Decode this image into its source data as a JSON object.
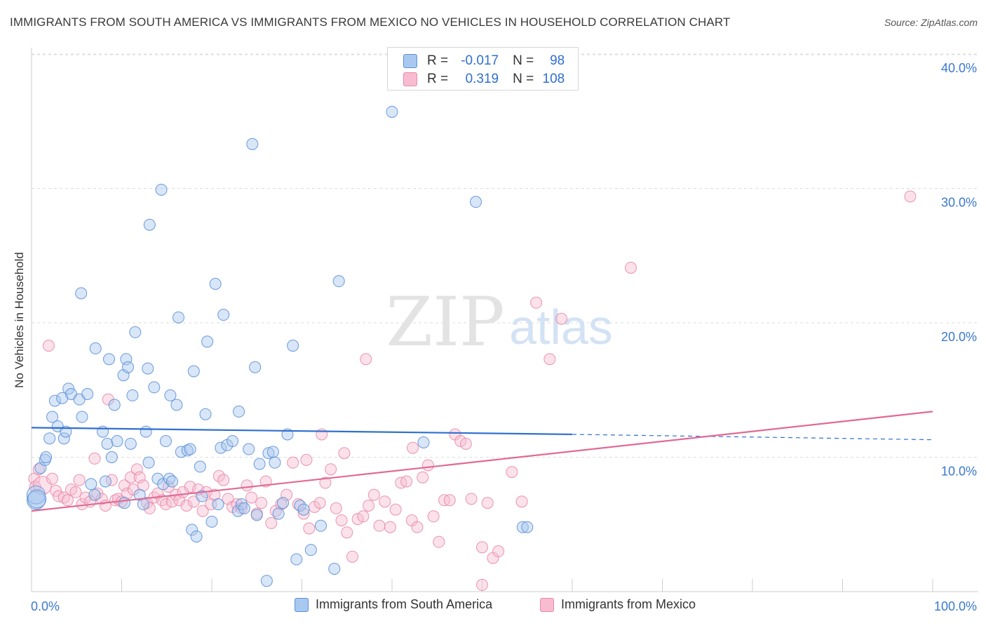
{
  "header": {
    "title": "IMMIGRANTS FROM SOUTH AMERICA VS IMMIGRANTS FROM MEXICO NO VEHICLES IN HOUSEHOLD CORRELATION CHART",
    "source": "Source: ZipAtlas.com"
  },
  "watermark": {
    "zip": "ZIP",
    "atlas": "atlas"
  },
  "legend_stats": {
    "row1": {
      "r_label": "R = ",
      "r_value": "-0.017",
      "n_label": "N = ",
      "n_value": "98"
    },
    "row2": {
      "r_label": "R = ",
      "r_value": "0.319",
      "n_label": "N = ",
      "n_value": "108"
    }
  },
  "colors": {
    "blue_fill": "#a9c8f0",
    "blue_stroke": "#5b8fd6",
    "blue_line": "#2f6fd0",
    "pink_fill": "#f7bcd0",
    "pink_stroke": "#e889a8",
    "pink_line": "#e06a94",
    "grid": "#dddddd",
    "tick_label": "#3b78cf"
  },
  "chart_data": {
    "type": "scatter",
    "title": "IMMIGRANTS FROM SOUTH AMERICA VS IMMIGRANTS FROM MEXICO NO VEHICLES IN HOUSEHOLD CORRELATION CHART",
    "xlabel": "",
    "ylabel": "No Vehicles in Household",
    "xlim": [
      0,
      100
    ],
    "ylim": [
      0,
      42
    ],
    "x_tick_labels": {
      "left": "0.0%",
      "right": "100.0%"
    },
    "y_ticks": [
      {
        "value": 10,
        "label": "10.0%"
      },
      {
        "value": 20,
        "label": "20.0%"
      },
      {
        "value": 30,
        "label": "30.0%"
      },
      {
        "value": 40,
        "label": "40.0%"
      }
    ],
    "series": [
      {
        "name": "Immigrants from South America",
        "color": "blue",
        "trend": {
          "x0": 0,
          "y0": 12.2,
          "x1": 60,
          "y1": 11.7,
          "dash_x1": 100,
          "dash_y1": 11.3
        },
        "points": [
          [
            0.5,
            6.8,
            1
          ],
          [
            0.5,
            7.2,
            1
          ],
          [
            0.6,
            6.9,
            1
          ],
          [
            1.0,
            9.2,
            0
          ],
          [
            1.5,
            9.8,
            0
          ],
          [
            1.6,
            10.0,
            0
          ],
          [
            2.0,
            11.4,
            0
          ],
          [
            2.3,
            13.0,
            0
          ],
          [
            2.6,
            14.2,
            0
          ],
          [
            2.9,
            12.3,
            0
          ],
          [
            3.4,
            14.4,
            0
          ],
          [
            3.6,
            11.4,
            0
          ],
          [
            3.8,
            11.9,
            0
          ],
          [
            4.1,
            15.1,
            0
          ],
          [
            4.4,
            14.7,
            0
          ],
          [
            5.3,
            14.3,
            0
          ],
          [
            5.6,
            13.0,
            0
          ],
          [
            6.2,
            14.7,
            0
          ],
          [
            6.6,
            8.0,
            0
          ],
          [
            7.0,
            7.2,
            0
          ],
          [
            5.5,
            22.2,
            0
          ],
          [
            7.1,
            18.1,
            0
          ],
          [
            7.9,
            11.9,
            0
          ],
          [
            8.2,
            8.2,
            0
          ],
          [
            8.4,
            11.0,
            0
          ],
          [
            8.6,
            17.3,
            0
          ],
          [
            8.9,
            10.0,
            0
          ],
          [
            9.2,
            13.9,
            0
          ],
          [
            9.5,
            11.2,
            0
          ],
          [
            10.2,
            16.1,
            0
          ],
          [
            10.3,
            6.6,
            0
          ],
          [
            10.5,
            17.3,
            0
          ],
          [
            10.7,
            16.7,
            0
          ],
          [
            11.0,
            11.0,
            0
          ],
          [
            11.2,
            14.6,
            0
          ],
          [
            11.5,
            19.3,
            0
          ],
          [
            12.0,
            7.2,
            0
          ],
          [
            12.4,
            6.5,
            0
          ],
          [
            12.7,
            11.9,
            0
          ],
          [
            12.9,
            16.6,
            0
          ],
          [
            13.0,
            9.6,
            0
          ],
          [
            13.1,
            27.3,
            0
          ],
          [
            13.6,
            15.2,
            0
          ],
          [
            14.0,
            8.4,
            0
          ],
          [
            14.4,
            29.9,
            0
          ],
          [
            14.6,
            8.0,
            0
          ],
          [
            14.9,
            11.2,
            0
          ],
          [
            15.3,
            8.4,
            0
          ],
          [
            15.4,
            14.6,
            0
          ],
          [
            15.6,
            8.2,
            0
          ],
          [
            16.1,
            13.9,
            0
          ],
          [
            16.3,
            20.4,
            0
          ],
          [
            16.6,
            10.4,
            0
          ],
          [
            17.3,
            10.5,
            0
          ],
          [
            17.6,
            10.6,
            0
          ],
          [
            17.8,
            4.6,
            0
          ],
          [
            18.0,
            16.4,
            0
          ],
          [
            18.3,
            4.1,
            0
          ],
          [
            18.7,
            9.3,
            0
          ],
          [
            18.9,
            7.1,
            0
          ],
          [
            19.3,
            13.2,
            0
          ],
          [
            19.5,
            18.6,
            0
          ],
          [
            20.0,
            5.2,
            0
          ],
          [
            20.4,
            22.9,
            0
          ],
          [
            20.7,
            6.5,
            0
          ],
          [
            21.0,
            10.7,
            0
          ],
          [
            21.3,
            20.6,
            0
          ],
          [
            21.7,
            10.9,
            0
          ],
          [
            22.3,
            11.2,
            0
          ],
          [
            22.9,
            6.0,
            0
          ],
          [
            23.0,
            13.4,
            0
          ],
          [
            23.3,
            6.5,
            0
          ],
          [
            23.6,
            6.2,
            0
          ],
          [
            24.1,
            10.6,
            0
          ],
          [
            24.5,
            33.3,
            0
          ],
          [
            24.8,
            16.7,
            0
          ],
          [
            25.3,
            9.5,
            0
          ],
          [
            26.1,
            0.8,
            0
          ],
          [
            26.3,
            10.3,
            0
          ],
          [
            26.8,
            10.4,
            0
          ],
          [
            27.0,
            9.6,
            0
          ],
          [
            27.4,
            5.8,
            0
          ],
          [
            27.9,
            6.6,
            0
          ],
          [
            28.4,
            11.7,
            0
          ],
          [
            29.0,
            18.3,
            0
          ],
          [
            29.4,
            2.4,
            0
          ],
          [
            29.8,
            6.4,
            0
          ],
          [
            31.0,
            3.1,
            0
          ],
          [
            32.1,
            4.9,
            0
          ],
          [
            33.6,
            1.7,
            0
          ],
          [
            34.1,
            23.1,
            0
          ],
          [
            40.0,
            35.7,
            0
          ],
          [
            43.5,
            11.1,
            0
          ],
          [
            49.3,
            29.0,
            0
          ],
          [
            54.5,
            4.8,
            0
          ],
          [
            55.0,
            4.8,
            0
          ],
          [
            30.2,
            6.1,
            0
          ],
          [
            25.0,
            5.7,
            0
          ]
        ]
      },
      {
        "name": "Immigrants from Mexico",
        "color": "pink",
        "trend": {
          "x0": 0,
          "y0": 6.0,
          "x1": 100,
          "y1": 13.4
        },
        "points": [
          [
            0.3,
            8.4,
            0
          ],
          [
            0.4,
            7.8,
            0
          ],
          [
            0.8,
            9.1,
            0
          ],
          [
            1.2,
            7.9,
            1
          ],
          [
            1.9,
            18.3,
            0
          ],
          [
            2.3,
            8.4,
            0
          ],
          [
            2.7,
            7.5,
            0
          ],
          [
            3.0,
            7.1,
            0
          ],
          [
            3.6,
            7.0,
            0
          ],
          [
            4.0,
            6.8,
            0
          ],
          [
            4.4,
            7.6,
            0
          ],
          [
            4.9,
            7.4,
            0
          ],
          [
            5.3,
            8.3,
            0
          ],
          [
            5.6,
            6.5,
            0
          ],
          [
            6.0,
            7.0,
            0
          ],
          [
            6.5,
            6.7,
            0
          ],
          [
            7.0,
            9.9,
            0
          ],
          [
            7.3,
            7.3,
            0
          ],
          [
            7.8,
            6.9,
            0
          ],
          [
            8.2,
            6.4,
            0
          ],
          [
            8.5,
            14.3,
            0
          ],
          [
            8.9,
            8.3,
            0
          ],
          [
            9.3,
            6.8,
            0
          ],
          [
            9.6,
            6.9,
            0
          ],
          [
            10.0,
            6.7,
            0
          ],
          [
            10.3,
            7.9,
            0
          ],
          [
            10.6,
            7.3,
            0
          ],
          [
            11.0,
            8.5,
            0
          ],
          [
            11.3,
            7.6,
            0
          ],
          [
            11.7,
            9.1,
            0
          ],
          [
            12.0,
            8.5,
            0
          ],
          [
            12.4,
            7.9,
            0
          ],
          [
            12.8,
            6.6,
            0
          ],
          [
            13.1,
            6.2,
            0
          ],
          [
            13.6,
            7.0,
            0
          ],
          [
            14.0,
            7.3,
            0
          ],
          [
            14.5,
            6.8,
            0
          ],
          [
            14.9,
            6.5,
            0
          ],
          [
            15.2,
            7.8,
            0
          ],
          [
            15.6,
            6.7,
            0
          ],
          [
            16.0,
            7.2,
            0
          ],
          [
            16.4,
            6.8,
            0
          ],
          [
            16.8,
            7.4,
            0
          ],
          [
            17.2,
            6.4,
            0
          ],
          [
            17.6,
            7.8,
            0
          ],
          [
            18.0,
            6.7,
            0
          ],
          [
            18.5,
            7.6,
            0
          ],
          [
            19.0,
            6.0,
            0
          ],
          [
            19.4,
            7.4,
            0
          ],
          [
            19.9,
            6.5,
            0
          ],
          [
            20.3,
            7.2,
            0
          ],
          [
            20.8,
            8.6,
            0
          ],
          [
            21.3,
            8.3,
            0
          ],
          [
            21.8,
            6.9,
            0
          ],
          [
            22.3,
            6.3,
            0
          ],
          [
            22.8,
            6.5,
            0
          ],
          [
            23.3,
            6.2,
            0
          ],
          [
            23.9,
            7.9,
            0
          ],
          [
            24.4,
            7.0,
            0
          ],
          [
            25.0,
            5.8,
            0
          ],
          [
            25.5,
            6.6,
            0
          ],
          [
            26.0,
            8.2,
            0
          ],
          [
            26.6,
            5.1,
            0
          ],
          [
            27.1,
            6.0,
            0
          ],
          [
            27.7,
            6.5,
            0
          ],
          [
            28.3,
            7.2,
            0
          ],
          [
            29.0,
            9.6,
            0
          ],
          [
            29.6,
            6.5,
            0
          ],
          [
            30.2,
            5.8,
            0
          ],
          [
            30.8,
            4.7,
            0
          ],
          [
            31.4,
            6.3,
            0
          ],
          [
            32.0,
            6.6,
            0
          ],
          [
            32.6,
            8.1,
            0
          ],
          [
            33.2,
            9.1,
            0
          ],
          [
            33.8,
            6.2,
            0
          ],
          [
            34.4,
            5.3,
            0
          ],
          [
            35.0,
            4.4,
            0
          ],
          [
            35.6,
            2.6,
            0
          ],
          [
            36.2,
            5.4,
            0
          ],
          [
            36.8,
            5.6,
            0
          ],
          [
            37.4,
            6.4,
            0
          ],
          [
            38.0,
            7.2,
            0
          ],
          [
            38.6,
            4.9,
            0
          ],
          [
            39.2,
            6.7,
            0
          ],
          [
            39.8,
            4.8,
            0
          ],
          [
            40.4,
            6.1,
            0
          ],
          [
            41.0,
            8.1,
            0
          ],
          [
            41.6,
            8.2,
            0
          ],
          [
            42.2,
            5.3,
            0
          ],
          [
            42.8,
            4.8,
            0
          ],
          [
            43.4,
            8.5,
            0
          ],
          [
            44.0,
            9.4,
            0
          ],
          [
            44.6,
            5.6,
            0
          ],
          [
            45.2,
            3.7,
            0
          ],
          [
            45.8,
            6.8,
            0
          ],
          [
            46.4,
            6.8,
            0
          ],
          [
            47.0,
            11.7,
            0
          ],
          [
            47.6,
            11.2,
            0
          ],
          [
            48.2,
            11.0,
            0
          ],
          [
            48.8,
            6.9,
            0
          ],
          [
            50.0,
            3.3,
            0
          ],
          [
            50.6,
            6.6,
            0
          ],
          [
            51.2,
            2.5,
            0
          ],
          [
            51.8,
            3.0,
            0
          ],
          [
            53.3,
            8.9,
            0
          ],
          [
            54.4,
            6.7,
            0
          ],
          [
            56.0,
            21.5,
            0
          ],
          [
            57.5,
            17.3,
            0
          ]
        ]
      }
    ],
    "extra_pink_points": [
      [
        66.5,
        24.1,
        0
      ],
      [
        58.8,
        20.3,
        0
      ],
      [
        37.1,
        17.3,
        0
      ],
      [
        32.2,
        11.7,
        0
      ],
      [
        34.7,
        10.3,
        0
      ],
      [
        97.5,
        29.4,
        0
      ],
      [
        30.5,
        9.8,
        0
      ],
      [
        42.3,
        10.7,
        0
      ],
      [
        50.0,
        0.5,
        0
      ]
    ]
  },
  "bottom_legend": {
    "item1": "Immigrants from South America",
    "item2": "Immigrants from Mexico"
  }
}
